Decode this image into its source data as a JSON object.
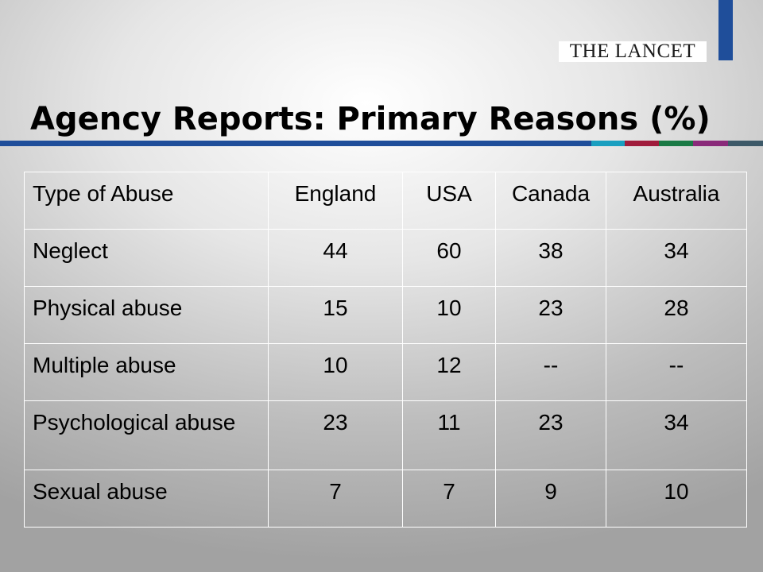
{
  "logo": {
    "text": "THE LANCET"
  },
  "title": "Agency Reports: Primary Reasons (%)",
  "colors": {
    "logo_bar": "#1f4e9a",
    "stripe_segments": [
      "#1f4e9a",
      "#1a9fc0",
      "#a01c3c",
      "#1a7a45",
      "#8a2a7a",
      "#3d5968"
    ]
  },
  "table": {
    "headers": [
      "Type of Abuse",
      "England",
      "USA",
      "Canada",
      "Australia"
    ],
    "rows": [
      [
        "Neglect",
        "44",
        "60",
        "38",
        "34"
      ],
      [
        "Physical abuse",
        "15",
        "10",
        "23",
        "28"
      ],
      [
        "Multiple abuse",
        "10",
        "12",
        "--",
        "--"
      ],
      [
        "Psychological abuse",
        "23",
        "11",
        "23",
        "34"
      ],
      [
        "Sexual abuse",
        "7",
        "7",
        "9",
        "10"
      ]
    ]
  }
}
